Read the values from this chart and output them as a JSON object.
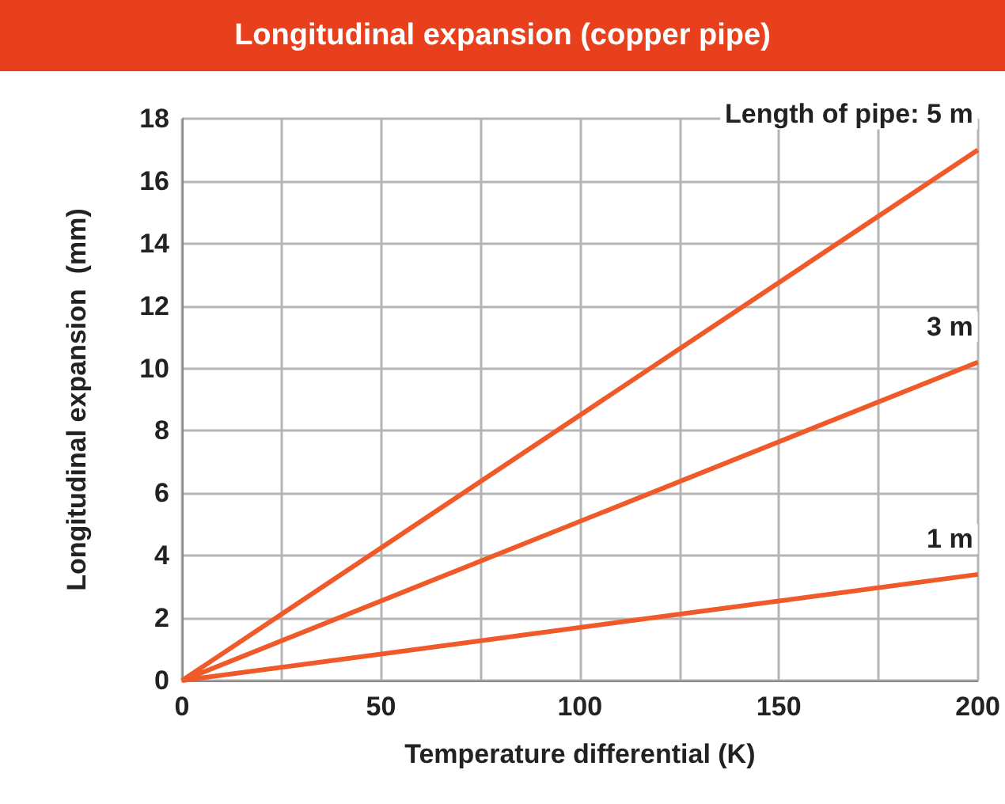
{
  "chart_data": {
    "type": "line",
    "title": "Longitudinal expansion (copper pipe)",
    "xlabel": "Temperature differential (K)",
    "ylabel": "Longitudinal expansion  (mm)",
    "x": [
      0,
      200
    ],
    "series": [
      {
        "name": "Length of pipe: 5 m",
        "color": "#ef5a2a",
        "values": [
          0,
          17
        ]
      },
      {
        "name": "3 m",
        "color": "#ef5a2a",
        "values": [
          0,
          10.2
        ]
      },
      {
        "name": "1 m",
        "color": "#ef5a2a",
        "values": [
          0,
          3.4
        ]
      }
    ],
    "xlim": [
      0,
      200
    ],
    "xticks": [
      0,
      {
        "value": 25,
        "label": null
      },
      50,
      {
        "value": 75,
        "label": null
      },
      100,
      {
        "value": 125,
        "label": null
      },
      150,
      {
        "value": 175,
        "label": null
      },
      200
    ],
    "ylim": [
      0,
      18
    ],
    "yticks": [
      0,
      2,
      4,
      6,
      8,
      10,
      12,
      14,
      16,
      18
    ],
    "grid": true,
    "legend": false,
    "marker": "none",
    "line_style": "solid"
  }
}
